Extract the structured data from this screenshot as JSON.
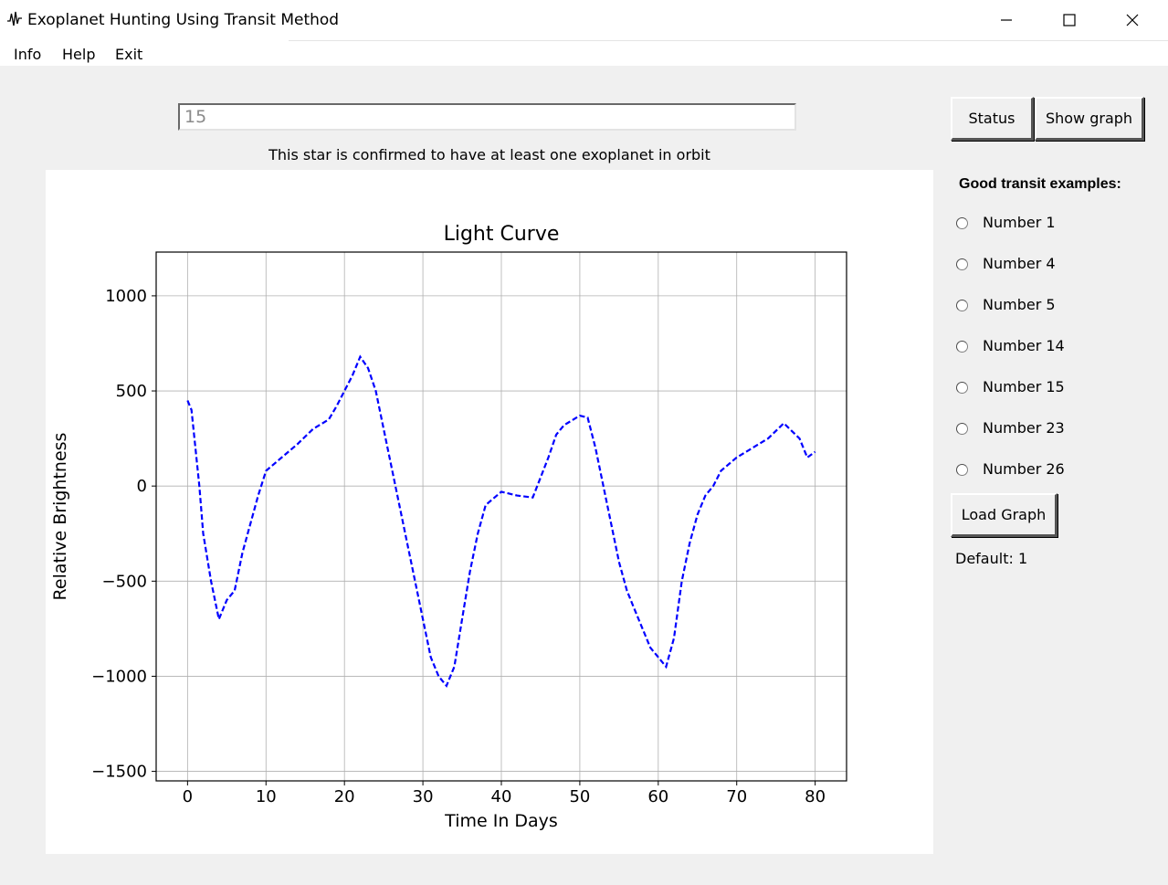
{
  "window": {
    "title": "Exoplanet Hunting Using Transit Method",
    "icon": "waveform-icon",
    "controls": [
      "minimize-icon",
      "maximize-icon",
      "close-icon"
    ]
  },
  "menu": {
    "items": [
      "Info",
      "Help",
      "Exit"
    ]
  },
  "star_input": {
    "value": "15"
  },
  "status_message": "This star is confirmed to have at least one exoplanet in orbit",
  "buttons": {
    "status": "Status",
    "show_graph": "Show graph",
    "load_graph": "Load Graph"
  },
  "examples": {
    "title": "Good transit examples:",
    "options": [
      "Number 1",
      "Number 4",
      "Number 5",
      "Number 14",
      "Number 15",
      "Number 23",
      "Number 26"
    ]
  },
  "default_text": "Default: 1",
  "chart_data": {
    "type": "line",
    "title": "Light Curve",
    "xlabel": "Time In Days",
    "ylabel": "Relative Brightness",
    "xlim": [
      -4,
      84
    ],
    "ylim": [
      -1550,
      1230
    ],
    "xticks": [
      0,
      10,
      20,
      30,
      40,
      50,
      60,
      70,
      80
    ],
    "yticks": [
      -1500,
      -1000,
      -500,
      0,
      500,
      1000
    ],
    "grid": true,
    "series": [
      {
        "color": "#0000ff",
        "linestyle": "dashed",
        "x": [
          0,
          0.5,
          1,
          1.5,
          2,
          3,
          4,
          5,
          6,
          7,
          8,
          9,
          10,
          12,
          14,
          16,
          18,
          19,
          20,
          21,
          22,
          23,
          24,
          25,
          26,
          27,
          28,
          29,
          30,
          31,
          32,
          33,
          34,
          35,
          36,
          37,
          38,
          40,
          42,
          44,
          46,
          47,
          48,
          50,
          51,
          52,
          53,
          54,
          55,
          56,
          57,
          58,
          59,
          60,
          61,
          62,
          63,
          64,
          65,
          66,
          67,
          68,
          70,
          72,
          74,
          76,
          78,
          79,
          80
        ],
        "y": [
          450,
          400,
          200,
          0,
          -250,
          -500,
          -700,
          -600,
          -550,
          -350,
          -200,
          -50,
          80,
          150,
          220,
          300,
          350,
          420,
          500,
          580,
          680,
          620,
          500,
          300,
          100,
          -100,
          -300,
          -500,
          -700,
          -900,
          -1000,
          -1050,
          -950,
          -700,
          -450,
          -250,
          -100,
          -30,
          -50,
          -60,
          150,
          270,
          320,
          370,
          360,
          200,
          0,
          -200,
          -400,
          -550,
          -650,
          -750,
          -850,
          -900,
          -950,
          -800,
          -500,
          -300,
          -150,
          -50,
          0,
          80,
          150,
          200,
          250,
          330,
          250,
          150,
          180
        ]
      }
    ]
  }
}
